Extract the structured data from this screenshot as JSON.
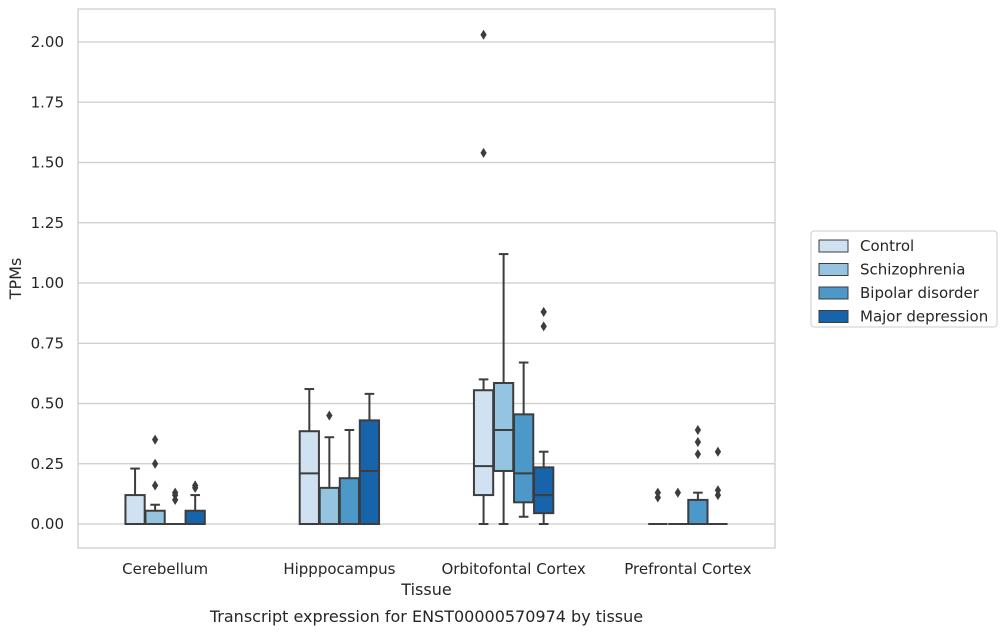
{
  "chart_data": {
    "type": "box",
    "caption": "Transcript expression for ENST00000570974 by tissue",
    "xlabel": "Tissue",
    "ylabel": "TPMs",
    "ylim": [
      -0.1,
      2.14
    ],
    "yticks": [
      0.0,
      0.25,
      0.5,
      0.75,
      1.0,
      1.25,
      1.5,
      1.75,
      2.0
    ],
    "ytick_labels": [
      "0.00",
      "0.25",
      "0.50",
      "0.75",
      "1.00",
      "1.25",
      "1.50",
      "1.75",
      "2.00"
    ],
    "grid": true,
    "legend_position": "outside-right",
    "categories": [
      "Cerebellum",
      "Hipppocampus",
      "Orbitofontal Cortex",
      "Prefrontal Cortex"
    ],
    "series": [
      {
        "name": "Control",
        "color": "#d0e1f2",
        "boxes": [
          {
            "whislo": 0.0,
            "q1": 0.0,
            "med": 0.0,
            "q3": 0.12,
            "whishi": 0.23,
            "fliers": []
          },
          {
            "whislo": 0.0,
            "q1": 0.0,
            "med": 0.21,
            "q3": 0.385,
            "whishi": 0.56,
            "fliers": []
          },
          {
            "whislo": 0.0,
            "q1": 0.12,
            "med": 0.24,
            "q3": 0.555,
            "whishi": 0.6,
            "fliers": [
              1.54,
              2.03
            ]
          },
          {
            "whislo": 0.0,
            "q1": 0.0,
            "med": 0.0,
            "q3": 0.0,
            "whishi": 0.0,
            "fliers": [
              0.11,
              0.13
            ]
          }
        ]
      },
      {
        "name": "Schizophrenia",
        "color": "#94c4df",
        "boxes": [
          {
            "whislo": 0.0,
            "q1": 0.0,
            "med": 0.0,
            "q3": 0.055,
            "whishi": 0.08,
            "fliers": [
              0.16,
              0.25,
              0.35
            ]
          },
          {
            "whislo": 0.0,
            "q1": 0.0,
            "med": 0.0,
            "q3": 0.15,
            "whishi": 0.36,
            "fliers": [
              0.45
            ]
          },
          {
            "whislo": 0.0,
            "q1": 0.22,
            "med": 0.39,
            "q3": 0.585,
            "whishi": 1.12,
            "fliers": []
          },
          {
            "whislo": 0.0,
            "q1": 0.0,
            "med": 0.0,
            "q3": 0.0,
            "whishi": 0.0,
            "fliers": [
              0.13
            ]
          }
        ]
      },
      {
        "name": "Bipolar disorder",
        "color": "#4b98c9",
        "boxes": [
          {
            "whislo": 0.0,
            "q1": 0.0,
            "med": 0.0,
            "q3": 0.0,
            "whishi": 0.0,
            "fliers": [
              0.1,
              0.12,
              0.13
            ]
          },
          {
            "whislo": 0.0,
            "q1": 0.0,
            "med": 0.0,
            "q3": 0.19,
            "whishi": 0.39,
            "fliers": []
          },
          {
            "whislo": 0.03,
            "q1": 0.09,
            "med": 0.21,
            "q3": 0.455,
            "whishi": 0.67,
            "fliers": []
          },
          {
            "whislo": 0.0,
            "q1": 0.0,
            "med": 0.0,
            "q3": 0.1,
            "whishi": 0.13,
            "fliers": [
              0.29,
              0.34,
              0.39
            ]
          }
        ]
      },
      {
        "name": "Major depression",
        "color": "#1764ab",
        "boxes": [
          {
            "whislo": 0.0,
            "q1": 0.0,
            "med": 0.0,
            "q3": 0.055,
            "whishi": 0.12,
            "fliers": [
              0.15,
              0.16
            ]
          },
          {
            "whislo": 0.0,
            "q1": 0.0,
            "med": 0.22,
            "q3": 0.43,
            "whishi": 0.54,
            "fliers": []
          },
          {
            "whislo": 0.0,
            "q1": 0.045,
            "med": 0.12,
            "q3": 0.235,
            "whishi": 0.3,
            "fliers": [
              0.82,
              0.88
            ]
          },
          {
            "whislo": 0.0,
            "q1": 0.0,
            "med": 0.0,
            "q3": 0.0,
            "whishi": 0.0,
            "fliers": [
              0.12,
              0.14,
              0.3
            ]
          }
        ]
      }
    ]
  }
}
